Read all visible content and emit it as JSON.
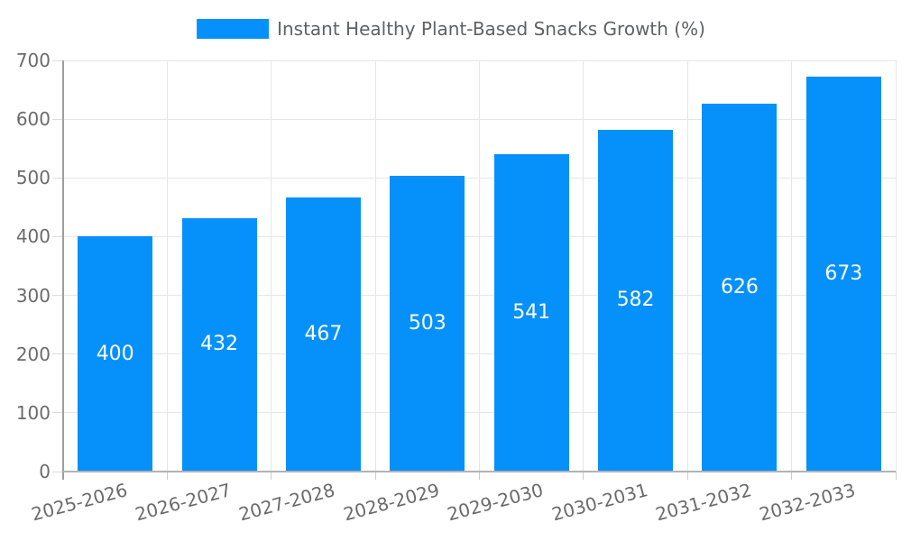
{
  "legend": {
    "label": "Instant Healthy Plant-Based Snacks Growth (%)"
  },
  "chart_data": {
    "type": "bar",
    "title": "Instant Healthy Plant-Based Snacks Growth (%)",
    "categories": [
      "2025-2026",
      "2026-2027",
      "2027-2028",
      "2028-2029",
      "2029-2030",
      "2030-2031",
      "2031-2032",
      "2032-2033"
    ],
    "values": [
      400,
      432,
      467,
      503,
      541,
      582,
      626,
      673
    ],
    "xlabel": "",
    "ylabel": "",
    "ylim": [
      0,
      700
    ],
    "yticks": [
      0,
      100,
      200,
      300,
      400,
      500,
      600,
      700
    ],
    "grid": true,
    "legend_position": "top",
    "bar_color": "#0690fa",
    "value_label_color": "#ffffff",
    "axis_label_color": "#6b6b6b",
    "grid_color": "#e6e6e6"
  }
}
